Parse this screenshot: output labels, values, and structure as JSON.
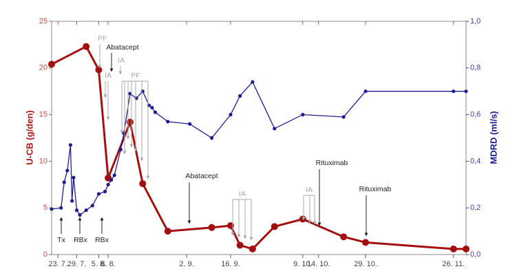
{
  "chart_data": {
    "type": "line",
    "y_label": "U-CB (g/den)",
    "y2_label": "MDRD (ml/s)",
    "xlim": [
      -2,
      130
    ],
    "xticks": [
      {
        "value": 0,
        "label": "23. 7."
      },
      {
        "value": 6,
        "label": "29. 7."
      },
      {
        "value": 13,
        "label": "5. 8."
      },
      {
        "value": 16,
        "label": "8. 8."
      },
      {
        "value": 41,
        "label": "2. 9."
      },
      {
        "value": 55,
        "label": "16. 9."
      },
      {
        "value": 78,
        "label": "9. 10."
      },
      {
        "value": 83,
        "label": "14. 10."
      },
      {
        "value": 98,
        "label": "29. 10."
      },
      {
        "value": 126,
        "label": "26. 11."
      }
    ],
    "ylim": [
      0,
      25
    ],
    "yticks": [
      0,
      5,
      10,
      15,
      20,
      25
    ],
    "y2lim": [
      0,
      1
    ],
    "y2ticks": [
      {
        "value": 0,
        "label": "0,0"
      },
      {
        "value": 0.2,
        "label": "0,2"
      },
      {
        "value": 0.4,
        "label": "0,4"
      },
      {
        "value": 0.6,
        "label": "0,6"
      },
      {
        "value": 0.8,
        "label": "0,8"
      },
      {
        "value": 1,
        "label": "1,0"
      }
    ],
    "series": [
      {
        "name": "U-CB",
        "color": "#a30f0f",
        "axis": "y",
        "x": [
          -2,
          9,
          13,
          16,
          23,
          27,
          35,
          49,
          55,
          58,
          62,
          69,
          78,
          91,
          98,
          126,
          130
        ],
        "values": [
          20.4,
          22.3,
          19.8,
          8.2,
          14.2,
          7.6,
          2.5,
          2.9,
          3.1,
          1.0,
          0.6,
          3.0,
          3.8,
          1.9,
          1.3,
          0.6,
          0.6
        ]
      },
      {
        "name": "MDRD",
        "color": "#1c1c8e",
        "axis": "y2",
        "x": [
          -2,
          1,
          2,
          3,
          4,
          4.5,
          5,
          6,
          7,
          9,
          11,
          13,
          15,
          16,
          17,
          18,
          20,
          21,
          23,
          25,
          27,
          29,
          30,
          31,
          35,
          42,
          49,
          55,
          58,
          62,
          69,
          78,
          91,
          98,
          126,
          130
        ],
        "values": [
          0.195,
          0.2,
          0.31,
          0.36,
          0.47,
          0.23,
          0.33,
          0.19,
          0.17,
          0.19,
          0.21,
          0.26,
          0.27,
          0.3,
          0.32,
          0.34,
          0.45,
          0.52,
          0.69,
          0.67,
          0.7,
          0.64,
          0.63,
          0.61,
          0.57,
          0.56,
          0.5,
          0.6,
          0.68,
          0.74,
          0.54,
          0.6,
          0.59,
          0.7,
          0.7,
          0.7
        ]
      }
    ],
    "annotations": [
      {
        "text": "Tx",
        "color": "#222222"
      },
      {
        "text": "RBx",
        "color": "#222222"
      },
      {
        "text": "RBx",
        "color": "#222222"
      },
      {
        "text": "PF",
        "color": "#a8a8a8"
      },
      {
        "text": "Abatacept",
        "color": "#222222"
      },
      {
        "text": "IA",
        "color": "#a8a8a8"
      },
      {
        "text": "IA",
        "color": "#a8a8a8"
      },
      {
        "text": "PF",
        "color": "#a8a8a8"
      },
      {
        "text": "Abatacept",
        "color": "#222222"
      },
      {
        "text": "IA",
        "color": "#a8a8a8"
      },
      {
        "text": "IA",
        "color": "#a8a8a8"
      },
      {
        "text": "Rituximab",
        "color": "#222222"
      },
      {
        "text": "Rituximab",
        "color": "#222222"
      }
    ]
  }
}
